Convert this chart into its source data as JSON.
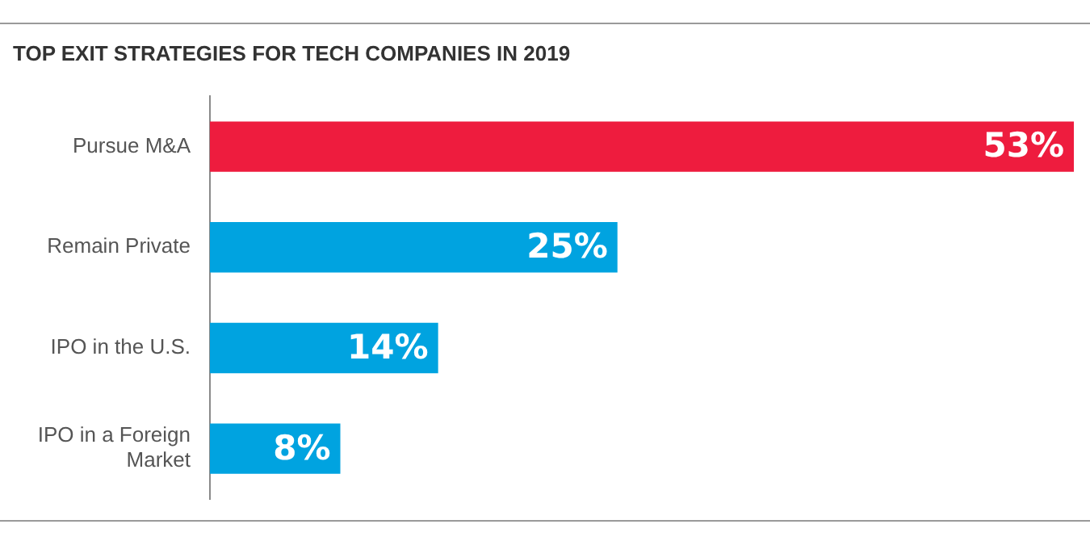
{
  "chart_data": {
    "type": "bar",
    "orientation": "horizontal",
    "title": "TOP EXIT STRATEGIES FOR TECH COMPANIES IN 2019",
    "categories": [
      "Pursue M&A",
      "Remain Private",
      "IPO in the U.S.",
      "IPO in a Foreign Market"
    ],
    "values": [
      53,
      25,
      14,
      8
    ],
    "colors": [
      "#ee1c3e",
      "#00a3e0",
      "#00a3e0",
      "#00a3e0"
    ],
    "value_labels": [
      "53%",
      "25%",
      "14%",
      "8%"
    ],
    "xlim": [
      0,
      53
    ],
    "legend": false,
    "tick_labels": "y"
  }
}
